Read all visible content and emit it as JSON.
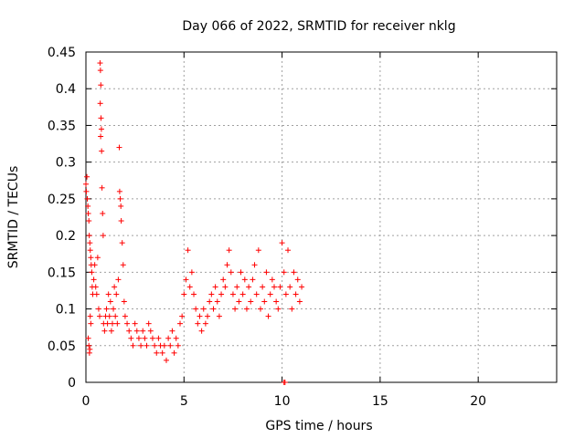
{
  "chart_data": {
    "type": "scatter",
    "title": "Day 066 of 2022, SRMTID for receiver nklg",
    "xlabel": "GPS time / hours",
    "ylabel": "SRMTID / TECUs",
    "xlim": [
      0,
      24
    ],
    "ylim": [
      0,
      0.45
    ],
    "xticks": [
      0,
      5,
      10,
      15,
      20
    ],
    "xtick_labels": [
      "0",
      "5",
      "10",
      "15",
      "20"
    ],
    "yticks": [
      0,
      0.05,
      0.1,
      0.15,
      0.2,
      0.25,
      0.3,
      0.35,
      0.4,
      0.45
    ],
    "ytick_labels": [
      "0",
      "0.05",
      "0.1",
      "0.15",
      "0.2",
      "0.25",
      "0.3",
      "0.35",
      "0.4",
      "0.45"
    ],
    "grid": true,
    "marker": "+",
    "color": "#ff0000",
    "series": [
      {
        "name": "nklg",
        "points": [
          [
            0.0,
            0.27
          ],
          [
            0.02,
            0.26
          ],
          [
            0.05,
            0.28
          ],
          [
            0.07,
            0.25
          ],
          [
            0.1,
            0.24
          ],
          [
            0.12,
            0.23
          ],
          [
            0.15,
            0.22
          ],
          [
            0.17,
            0.2
          ],
          [
            0.2,
            0.19
          ],
          [
            0.22,
            0.18
          ],
          [
            0.25,
            0.17
          ],
          [
            0.27,
            0.16
          ],
          [
            0.3,
            0.15
          ],
          [
            0.32,
            0.13
          ],
          [
            0.35,
            0.12
          ],
          [
            0.12,
            0.06
          ],
          [
            0.15,
            0.05
          ],
          [
            0.18,
            0.04
          ],
          [
            0.2,
            0.045
          ],
          [
            0.22,
            0.09
          ],
          [
            0.25,
            0.08
          ],
          [
            0.4,
            0.14
          ],
          [
            0.45,
            0.16
          ],
          [
            0.5,
            0.13
          ],
          [
            0.55,
            0.12
          ],
          [
            0.6,
            0.17
          ],
          [
            0.65,
            0.1
          ],
          [
            0.7,
            0.09
          ],
          [
            0.72,
            0.435
          ],
          [
            0.74,
            0.425
          ],
          [
            0.76,
            0.405
          ],
          [
            0.73,
            0.38
          ],
          [
            0.77,
            0.36
          ],
          [
            0.79,
            0.345
          ],
          [
            0.75,
            0.335
          ],
          [
            0.8,
            0.315
          ],
          [
            0.82,
            0.265
          ],
          [
            0.85,
            0.23
          ],
          [
            0.88,
            0.2
          ],
          [
            0.9,
            0.08
          ],
          [
            0.95,
            0.07
          ],
          [
            1.0,
            0.09
          ],
          [
            1.05,
            0.1
          ],
          [
            1.1,
            0.08
          ],
          [
            1.15,
            0.12
          ],
          [
            1.2,
            0.09
          ],
          [
            1.25,
            0.11
          ],
          [
            1.3,
            0.07
          ],
          [
            1.35,
            0.08
          ],
          [
            1.4,
            0.1
          ],
          [
            1.45,
            0.13
          ],
          [
            1.5,
            0.09
          ],
          [
            1.55,
            0.12
          ],
          [
            1.6,
            0.08
          ],
          [
            1.65,
            0.14
          ],
          [
            1.7,
            0.32
          ],
          [
            1.72,
            0.26
          ],
          [
            1.75,
            0.25
          ],
          [
            1.78,
            0.24
          ],
          [
            1.8,
            0.22
          ],
          [
            1.85,
            0.19
          ],
          [
            1.9,
            0.16
          ],
          [
            1.95,
            0.11
          ],
          [
            2.0,
            0.09
          ],
          [
            2.1,
            0.08
          ],
          [
            2.2,
            0.07
          ],
          [
            2.3,
            0.06
          ],
          [
            2.4,
            0.05
          ],
          [
            2.5,
            0.08
          ],
          [
            2.6,
            0.07
          ],
          [
            2.7,
            0.06
          ],
          [
            2.8,
            0.05
          ],
          [
            2.9,
            0.07
          ],
          [
            3.0,
            0.06
          ],
          [
            3.1,
            0.05
          ],
          [
            3.2,
            0.08
          ],
          [
            3.3,
            0.07
          ],
          [
            3.4,
            0.06
          ],
          [
            3.5,
            0.05
          ],
          [
            3.6,
            0.04
          ],
          [
            3.7,
            0.06
          ],
          [
            3.8,
            0.05
          ],
          [
            3.9,
            0.04
          ],
          [
            4.0,
            0.05
          ],
          [
            4.1,
            0.03
          ],
          [
            4.2,
            0.06
          ],
          [
            4.3,
            0.05
          ],
          [
            4.4,
            0.07
          ],
          [
            4.5,
            0.04
          ],
          [
            4.6,
            0.06
          ],
          [
            4.7,
            0.05
          ],
          [
            4.8,
            0.08
          ],
          [
            4.9,
            0.09
          ],
          [
            5.0,
            0.12
          ],
          [
            5.1,
            0.14
          ],
          [
            5.2,
            0.18
          ],
          [
            5.3,
            0.13
          ],
          [
            5.4,
            0.15
          ],
          [
            5.5,
            0.12
          ],
          [
            5.6,
            0.1
          ],
          [
            5.7,
            0.08
          ],
          [
            5.8,
            0.09
          ],
          [
            5.9,
            0.07
          ],
          [
            6.0,
            0.1
          ],
          [
            6.1,
            0.08
          ],
          [
            6.2,
            0.09
          ],
          [
            6.3,
            0.11
          ],
          [
            6.4,
            0.12
          ],
          [
            6.5,
            0.1
          ],
          [
            6.6,
            0.13
          ],
          [
            6.7,
            0.11
          ],
          [
            6.8,
            0.09
          ],
          [
            6.9,
            0.12
          ],
          [
            7.0,
            0.14
          ],
          [
            7.1,
            0.13
          ],
          [
            7.2,
            0.16
          ],
          [
            7.3,
            0.18
          ],
          [
            7.4,
            0.15
          ],
          [
            7.5,
            0.12
          ],
          [
            7.6,
            0.1
          ],
          [
            7.7,
            0.13
          ],
          [
            7.8,
            0.11
          ],
          [
            7.9,
            0.15
          ],
          [
            8.0,
            0.12
          ],
          [
            8.1,
            0.14
          ],
          [
            8.2,
            0.1
          ],
          [
            8.3,
            0.13
          ],
          [
            8.4,
            0.11
          ],
          [
            8.5,
            0.14
          ],
          [
            8.6,
            0.16
          ],
          [
            8.7,
            0.12
          ],
          [
            8.8,
            0.18
          ],
          [
            8.9,
            0.1
          ],
          [
            9.0,
            0.13
          ],
          [
            9.1,
            0.11
          ],
          [
            9.2,
            0.15
          ],
          [
            9.3,
            0.09
          ],
          [
            9.4,
            0.12
          ],
          [
            9.5,
            0.14
          ],
          [
            9.6,
            0.13
          ],
          [
            9.7,
            0.11
          ],
          [
            9.8,
            0.1
          ],
          [
            9.9,
            0.13
          ],
          [
            10.0,
            0.19
          ],
          [
            10.1,
            0.15
          ],
          [
            10.2,
            0.12
          ],
          [
            10.3,
            0.18
          ],
          [
            10.4,
            0.13
          ],
          [
            10.5,
            0.1
          ],
          [
            10.6,
            0.15
          ],
          [
            10.7,
            0.12
          ],
          [
            10.8,
            0.14
          ],
          [
            10.9,
            0.11
          ],
          [
            11.0,
            0.13
          ],
          [
            10.1,
            0.0
          ],
          [
            10.15,
            0.0
          ]
        ]
      }
    ]
  }
}
